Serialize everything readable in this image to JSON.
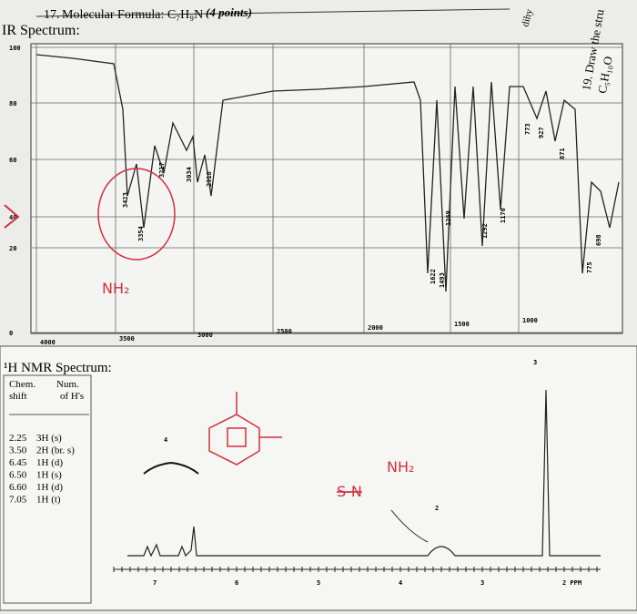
{
  "question": {
    "number": "17.",
    "title": "Molecular Formula: C₇H₉N",
    "points": "(4 points)"
  },
  "ir": {
    "label": "IR Spectrum:",
    "y_ticks": [
      "100",
      "80",
      "60",
      "40",
      "20",
      "0"
    ],
    "x_ticks": [
      "4000",
      "3500",
      "3000",
      "2500",
      "2000",
      "1500",
      "1000"
    ],
    "peaks": [
      "3423",
      "3354",
      "3217",
      "3034",
      "2918",
      "1622",
      "1493",
      "1269",
      "1292",
      "1170",
      "773",
      "927",
      "871",
      "775",
      "698"
    ]
  },
  "nmr": {
    "label": "¹H NMR Spectrum:",
    "table": {
      "header": {
        "shift": [
          "Chem.",
          "shift"
        ],
        "count": [
          "Num.",
          "of H's"
        ]
      },
      "rows": [
        [
          "2.25",
          "3H (s)"
        ],
        [
          "3.50",
          "2H (br. s)"
        ],
        [
          "6.45",
          "1H (d)"
        ],
        [
          "6.50",
          "1H (s)"
        ],
        [
          "6.60",
          "1H (d)"
        ],
        [
          "7.05",
          "1H (t)"
        ]
      ]
    },
    "peak_labels": [
      "4",
      "2",
      "3"
    ],
    "axis": [
      "7",
      "6",
      "5",
      "4",
      "3",
      "2 PPM"
    ]
  },
  "annotations": {
    "ir_group": "NH₂",
    "nmr_group": "NH₂",
    "struck": "S-N"
  },
  "side": {
    "question": "19. Draw the stru",
    "formula": "C₅H₁₀O",
    "note": "dihy"
  }
}
